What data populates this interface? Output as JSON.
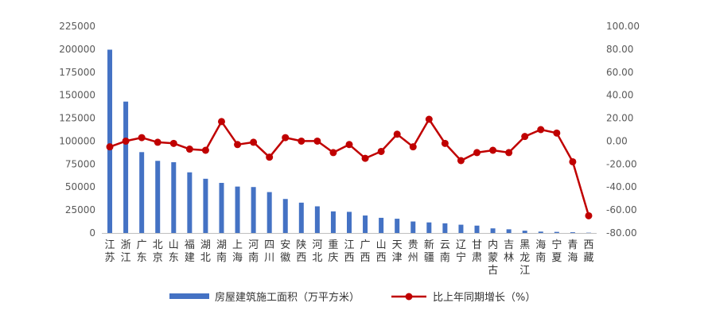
{
  "chart_data": {
    "type": "bar+line",
    "categories": [
      [
        "江",
        "苏"
      ],
      [
        "浙",
        "江"
      ],
      [
        "广",
        "东"
      ],
      [
        "北",
        "京"
      ],
      [
        "山",
        "东"
      ],
      [
        "福",
        "建"
      ],
      [
        "湖",
        "北"
      ],
      [
        "湖",
        "南"
      ],
      [
        "上",
        "海"
      ],
      [
        "河",
        "南"
      ],
      [
        "四",
        "川"
      ],
      [
        "安",
        "徽"
      ],
      [
        "陕",
        "西"
      ],
      [
        "河",
        "北"
      ],
      [
        "重",
        "庆"
      ],
      [
        "江",
        "西"
      ],
      [
        "广",
        "西"
      ],
      [
        "山",
        "西"
      ],
      [
        "天",
        "津"
      ],
      [
        "贵",
        "州"
      ],
      [
        "新",
        "疆"
      ],
      [
        "云",
        "南"
      ],
      [
        "辽",
        "宁"
      ],
      [
        "甘",
        "肃"
      ],
      [
        "内",
        "蒙",
        "古"
      ],
      [
        "吉",
        "林"
      ],
      [
        "黑",
        "龙",
        "江"
      ],
      [
        "海",
        "南"
      ],
      [
        "宁",
        "夏"
      ],
      [
        "青",
        "海"
      ],
      [
        "西",
        "藏"
      ]
    ],
    "series": [
      {
        "name": "房屋建筑施工面积（万平方米）",
        "type": "bar",
        "axis": "left",
        "color": "#4472C4",
        "values": [
          199500,
          143000,
          88000,
          78500,
          77000,
          66000,
          59000,
          54500,
          50500,
          50000,
          44500,
          37000,
          33000,
          29000,
          23500,
          23000,
          19000,
          16500,
          15500,
          12500,
          11500,
          10500,
          9000,
          8000,
          5000,
          4000,
          2500,
          1500,
          1200,
          800,
          300
        ]
      },
      {
        "name": "比上年同期增长（%）",
        "type": "line",
        "axis": "right",
        "color": "#C00000",
        "values": [
          -5,
          0,
          3,
          -1,
          -2,
          -7,
          -8,
          17,
          -3,
          -1,
          -14,
          3,
          0,
          0,
          -10,
          -3,
          -15,
          -9,
          6,
          -5,
          19,
          -2,
          -17,
          -10,
          -8,
          -10,
          4,
          10,
          7,
          -18,
          -65
        ]
      }
    ],
    "y_left": {
      "min": 0,
      "max": 225000,
      "ticks": [
        "0",
        "25000",
        "50000",
        "75000",
        "100000",
        "125000",
        "150000",
        "175000",
        "200000",
        "225000"
      ]
    },
    "y_right": {
      "min": -80,
      "max": 100,
      "ticks": [
        "-80.00",
        "-60.00",
        "-40.00",
        "-20.00",
        "0.00",
        "20.00",
        "40.00",
        "60.00",
        "80.00",
        "100.00"
      ]
    },
    "legend": {
      "placement": "bottom"
    },
    "grid": false
  }
}
